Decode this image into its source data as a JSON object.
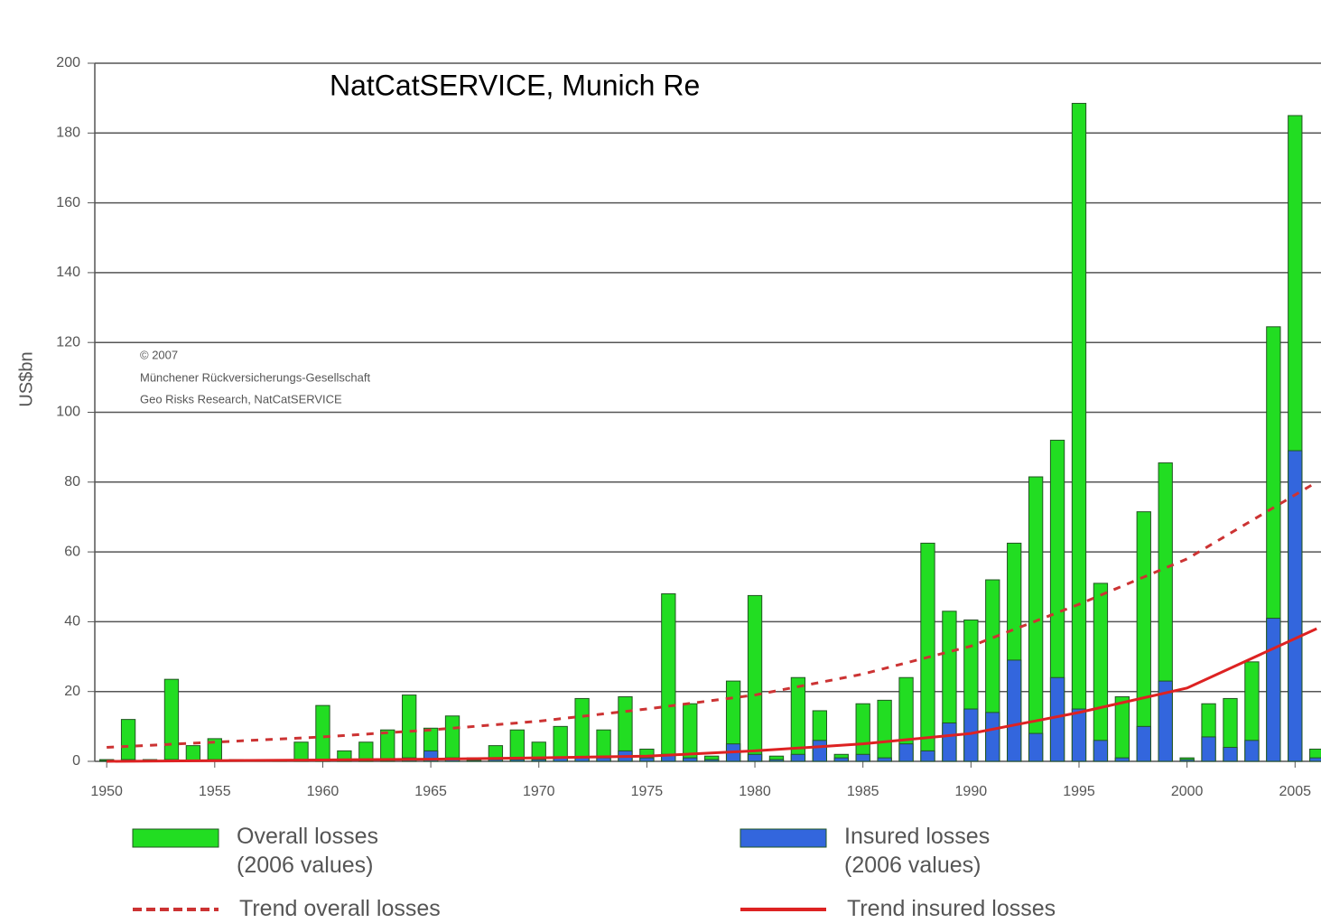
{
  "chart_data": {
    "type": "bar",
    "title": "NatCatSERVICE, Munich Re",
    "y_label": "US$bn",
    "notes": [
      "© 2007",
      "Münchener Rückversicherungs-Gesellschaft",
      "Geo Risks Research, NatCatSERVICE"
    ],
    "x": [
      1950,
      1951,
      1952,
      1953,
      1954,
      1955,
      1956,
      1957,
      1958,
      1959,
      1960,
      1961,
      1962,
      1963,
      1964,
      1965,
      1966,
      1967,
      1968,
      1969,
      1970,
      1971,
      1972,
      1973,
      1974,
      1975,
      1976,
      1977,
      1978,
      1979,
      1980,
      1981,
      1982,
      1983,
      1984,
      1985,
      1986,
      1987,
      1988,
      1989,
      1990,
      1991,
      1992,
      1993,
      1994,
      1995,
      1996,
      1997,
      1998,
      1999,
      2000,
      2001,
      2002,
      2003,
      2004,
      2005,
      2006
    ],
    "series": [
      {
        "name": "Overall losses (2006 values)",
        "type": "bar",
        "color": "#22dd22",
        "values": [
          0.5,
          12,
          0.5,
          23.5,
          4.5,
          6.5,
          0.5,
          0.5,
          0.5,
          5.5,
          16,
          3,
          5.5,
          9,
          19,
          9.5,
          13,
          1,
          4.5,
          9,
          5.5,
          10,
          18,
          9,
          18.5,
          3.5,
          48,
          16.5,
          1.5,
          23,
          47.5,
          1.5,
          24,
          14.5,
          2,
          16.5,
          17.5,
          24,
          62.5,
          43,
          40.5,
          52,
          62.5,
          81.5,
          92,
          188.5,
          51,
          18.5,
          71.5,
          85.5,
          1,
          16.5,
          18,
          28.5,
          124.5,
          185,
          3.5
        ]
      },
      {
        "name": "Insured losses (2006 values)",
        "type": "bar",
        "color": "#3366dd",
        "values": [
          0.2,
          0.5,
          0.2,
          0.5,
          0.3,
          0.5,
          0.2,
          0.2,
          0.2,
          0.5,
          0.5,
          0.3,
          0.5,
          0.5,
          1,
          3,
          1,
          0.3,
          0.5,
          0.5,
          0.5,
          1,
          1,
          1,
          3,
          1,
          2,
          1,
          0.5,
          5,
          2,
          0.5,
          2,
          6,
          1,
          2,
          1,
          5,
          3,
          11,
          15,
          14,
          29,
          8,
          24,
          15,
          6,
          1,
          10,
          23,
          0.5,
          7,
          4,
          6,
          41,
          89,
          1
        ]
      },
      {
        "name": "Trend overall losses",
        "type": "line",
        "color": "#cc3333",
        "dashed": true,
        "x": [
          1950,
          1955,
          1960,
          1965,
          1970,
          1975,
          1980,
          1985,
          1990,
          1995,
          2000,
          2006
        ],
        "values": [
          4,
          5.5,
          7,
          9,
          11.5,
          15,
          19,
          25,
          33,
          45,
          58,
          80
        ]
      },
      {
        "name": "Trend insured losses",
        "type": "line",
        "color": "#dd2222",
        "dashed": false,
        "x": [
          1950,
          1955,
          1960,
          1965,
          1970,
          1975,
          1980,
          1985,
          1990,
          1995,
          2000,
          2006
        ],
        "values": [
          0,
          0.2,
          0.4,
          0.6,
          1,
          1.5,
          3,
          5,
          8,
          14,
          21,
          38
        ]
      }
    ],
    "xlim": [
      1949.45,
      2006.2
    ],
    "xticks": [
      1950,
      1955,
      1960,
      1965,
      1970,
      1975,
      1980,
      1985,
      1990,
      1995,
      2000,
      2005
    ],
    "ylim": [
      0,
      200
    ],
    "yticks": [
      0,
      20,
      40,
      60,
      80,
      100,
      120,
      140,
      160,
      180,
      200
    ],
    "grid": true
  }
}
